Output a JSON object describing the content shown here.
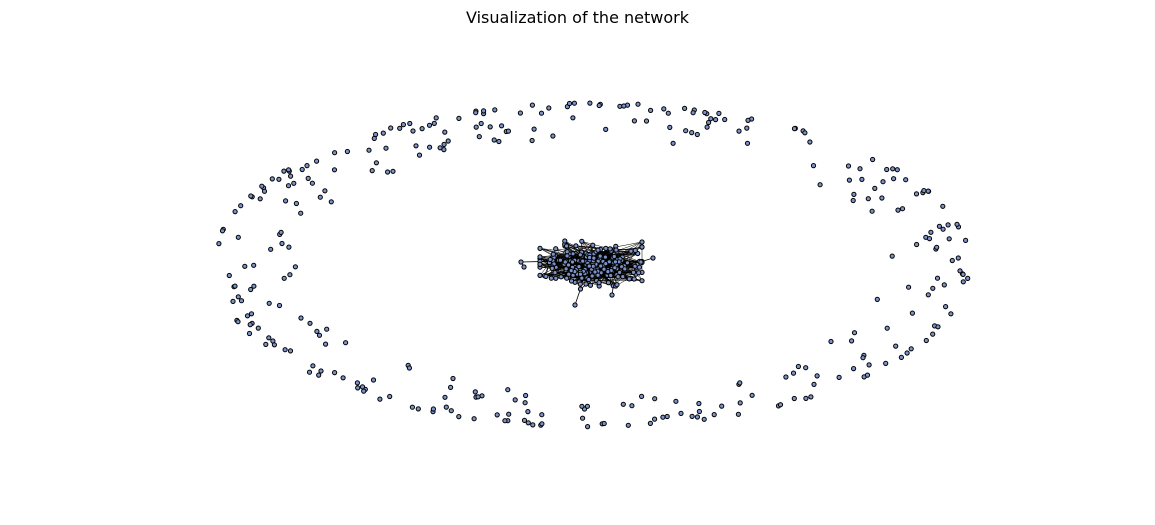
{
  "title": "Visualization of the network",
  "style": {
    "node_fill": "#7b93c9",
    "node_edge": "#000000",
    "edge_color": "#000000",
    "background": "#ffffff"
  },
  "network": {
    "layout": "spring",
    "isolated_nodes": 330,
    "connected_component_nodes": 260,
    "pendant_nodes_visible": 6
  }
}
